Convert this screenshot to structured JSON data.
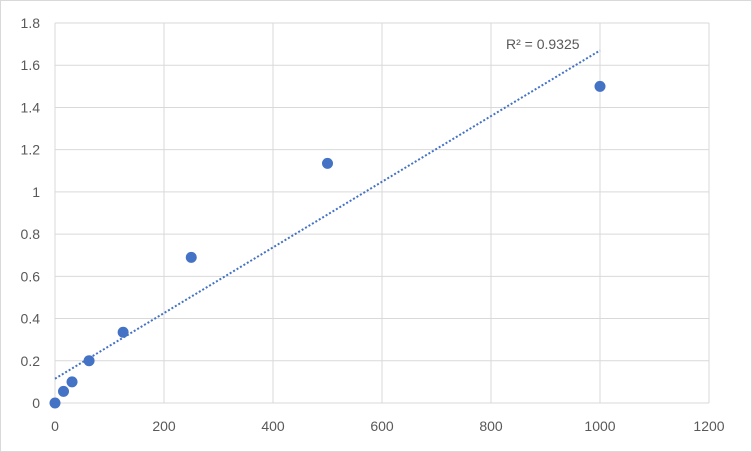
{
  "chart_data": {
    "type": "scatter",
    "title": "",
    "xlabel": "",
    "ylabel": "",
    "xlim": [
      0,
      1200
    ],
    "ylim": [
      0,
      1.8
    ],
    "xticks": [
      0,
      200,
      400,
      600,
      800,
      1000,
      1200
    ],
    "yticks": [
      0,
      0.2,
      0.4,
      0.6,
      0.8,
      1,
      1.2,
      1.4,
      1.6,
      1.8
    ],
    "xtick_labels": [
      "0",
      "200",
      "400",
      "600",
      "800",
      "1000",
      "1200"
    ],
    "ytick_labels": [
      "0",
      "0.2",
      "0.4",
      "0.6",
      "0.8",
      "1",
      "1.2",
      "1.4",
      "1.6",
      "1.8"
    ],
    "grid": true,
    "legend": "none",
    "series": [
      {
        "x": [
          0,
          15.6,
          31.25,
          62.5,
          125,
          250,
          500,
          1000
        ],
        "y": [
          0.0,
          0.055,
          0.1,
          0.2,
          0.335,
          0.69,
          1.135,
          1.5
        ],
        "color": "#4472c4"
      }
    ],
    "trendline": {
      "type": "linear",
      "x_range": [
        0,
        1000
      ],
      "y_at_start": 0.115,
      "y_at_end": 1.67,
      "color": "#4472c4",
      "style": "dotted"
    },
    "annotations": [
      {
        "text": "R² = 0.9325",
        "x": 895,
        "y": 1.7
      }
    ]
  }
}
